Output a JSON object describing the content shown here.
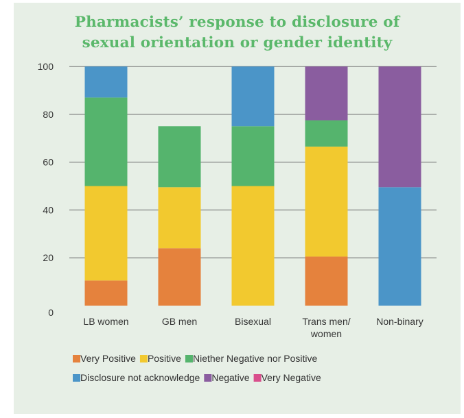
{
  "chart_data": {
    "type": "bar",
    "stacked": true,
    "title": [
      "Pharmacists’ response to disclosure of",
      "sexual orientation or gender identity"
    ],
    "categories": [
      [
        "LB women"
      ],
      [
        "GB men"
      ],
      [
        "Bisexual"
      ],
      [
        "Trans men/",
        "women"
      ],
      [
        "Non-binary"
      ]
    ],
    "ylim": [
      0,
      100
    ],
    "yticks": [
      0,
      20,
      40,
      60,
      80,
      100
    ],
    "grid": true,
    "legend_position": "bottom",
    "series": [
      {
        "name": "Very Positive",
        "color": "#e5823d",
        "values": [
          10.5,
          24,
          0,
          20.5,
          0
        ]
      },
      {
        "name": "Positive",
        "color": "#f2c92f",
        "values": [
          39.5,
          25.5,
          50,
          46,
          0
        ]
      },
      {
        "name": "Niether Negative nor Positive",
        "color": "#55b46d",
        "values": [
          37,
          25.5,
          25,
          11,
          0
        ]
      },
      {
        "name": "Disclosure not acknowledge",
        "color": "#4b95c8",
        "values": [
          13,
          0,
          25,
          0,
          49.5
        ]
      },
      {
        "name": "Negative",
        "color": "#8a5d9f",
        "values": [
          0,
          0,
          0,
          22.5,
          50.5
        ]
      },
      {
        "name": "Very Negative",
        "color": "#d94f8c",
        "values": [
          0,
          0,
          0,
          0,
          0
        ]
      }
    ]
  }
}
